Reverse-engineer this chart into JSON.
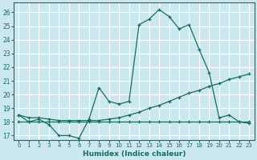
{
  "xlabel": "Humidex (Indice chaleur)",
  "bg_color": "#cce8ef",
  "grid_color": "#ffffff",
  "line_color": "#1a6b5e",
  "xlim": [
    -0.5,
    23.5
  ],
  "ylim": [
    16.7,
    26.7
  ],
  "xticks": [
    0,
    1,
    2,
    3,
    4,
    5,
    6,
    7,
    8,
    9,
    10,
    11,
    12,
    13,
    14,
    15,
    16,
    17,
    18,
    19,
    20,
    21,
    22,
    23
  ],
  "yticks": [
    17,
    18,
    19,
    20,
    21,
    22,
    23,
    24,
    25,
    26
  ],
  "line1_x": [
    0,
    1,
    2,
    3,
    4,
    5,
    6,
    7,
    8,
    9,
    10,
    11,
    12,
    13,
    14,
    15,
    16,
    17,
    18,
    19,
    20,
    21,
    22,
    23
  ],
  "line1_y": [
    18.5,
    18.0,
    18.2,
    17.8,
    17.0,
    17.0,
    16.8,
    18.2,
    20.5,
    19.5,
    19.3,
    19.5,
    25.1,
    25.5,
    26.2,
    25.7,
    24.8,
    25.1,
    23.3,
    21.6,
    18.3,
    18.5,
    18.0,
    17.9
  ],
  "line2_x": [
    0,
    1,
    2,
    3,
    4,
    5,
    6,
    7,
    8,
    9,
    10,
    11,
    12,
    13,
    14,
    15,
    16,
    17,
    18,
    19,
    20,
    21,
    22,
    23
  ],
  "line2_y": [
    18.5,
    18.3,
    18.3,
    18.2,
    18.1,
    18.1,
    18.1,
    18.1,
    18.1,
    18.2,
    18.3,
    18.5,
    18.7,
    19.0,
    19.2,
    19.5,
    19.8,
    20.1,
    20.3,
    20.6,
    20.8,
    21.1,
    21.3,
    21.5
  ],
  "line3_x": [
    0,
    1,
    2,
    3,
    4,
    5,
    6,
    7,
    8,
    9,
    10,
    11,
    12,
    13,
    14,
    15,
    16,
    17,
    18,
    19,
    20,
    21,
    22,
    23
  ],
  "line3_y": [
    18.0,
    18.0,
    18.0,
    18.0,
    18.0,
    18.0,
    18.0,
    18.0,
    18.0,
    18.0,
    18.0,
    18.0,
    18.0,
    18.0,
    18.0,
    18.0,
    18.0,
    18.0,
    18.0,
    18.0,
    18.0,
    18.0,
    18.0,
    18.0
  ]
}
